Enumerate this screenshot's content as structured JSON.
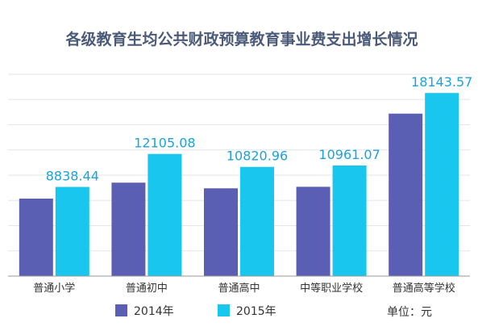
{
  "chart_data": {
    "type": "bar",
    "title": "各级教育生均公共财政预算教育事业费支出增长情况",
    "categories": [
      "普通小学",
      "普通初中",
      "普通高中",
      "中等职业学校",
      "普通高等学校"
    ],
    "series": [
      {
        "name": "2014年",
        "color": "#5b5fb3",
        "values": [
          7680,
          9260,
          8700,
          8850,
          16100
        ]
      },
      {
        "name": "2015年",
        "color": "#18c6ee",
        "values": [
          8838.44,
          12105.08,
          10820.96,
          10961.07,
          18143.57
        ]
      }
    ],
    "data_labels": [
      "8838.44",
      "12105.08",
      "10820.96",
      "10961.07",
      "18143.57"
    ],
    "ylim": [
      0,
      20000
    ],
    "unit": "单位：元",
    "grid": true,
    "legend": "bottom",
    "label_color": "#1ba3d8"
  }
}
